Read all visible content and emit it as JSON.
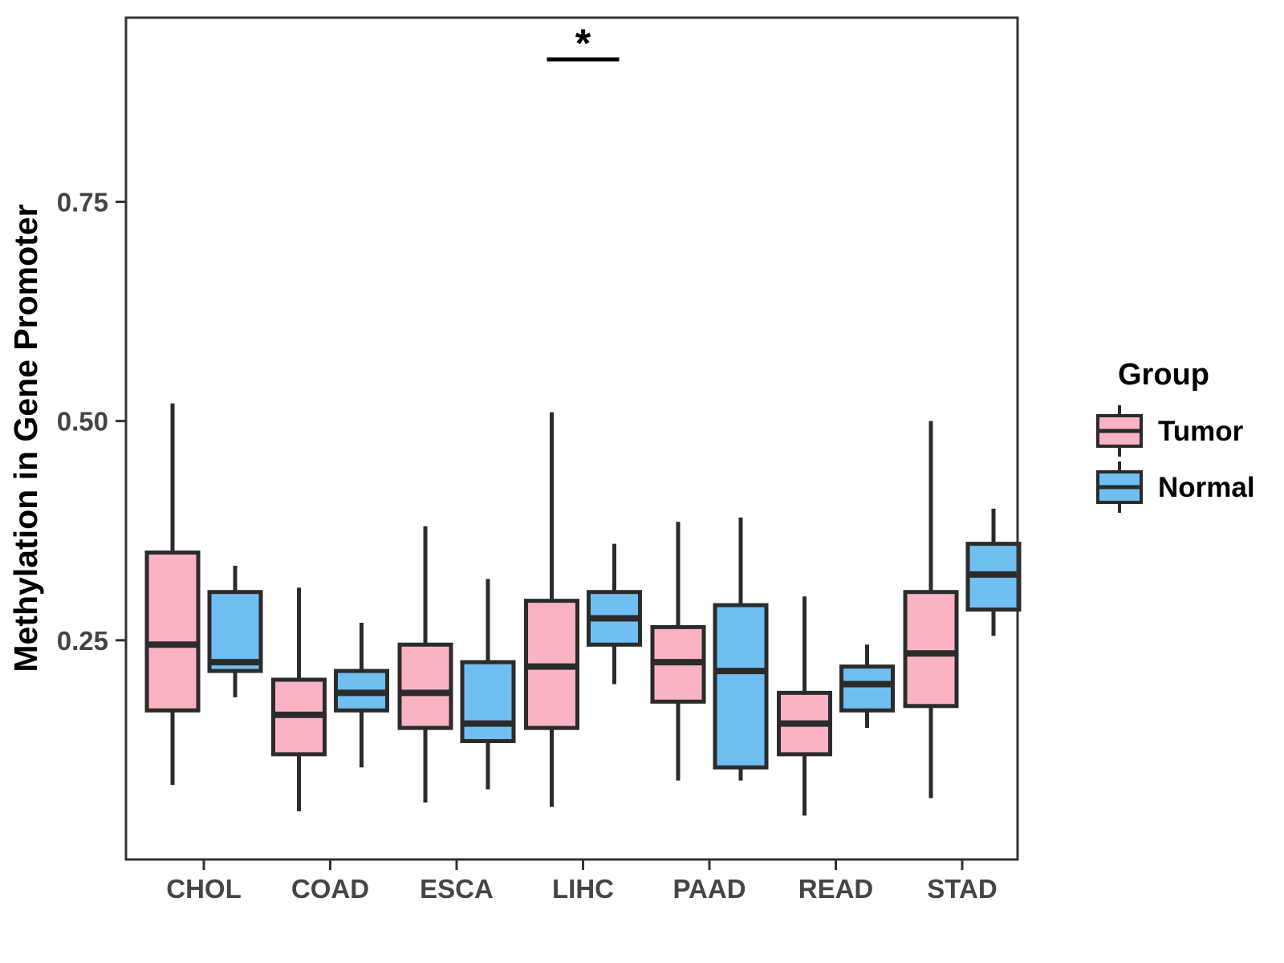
{
  "figure": {
    "y_axis_title": "Methylation in Gene Promoter",
    "significance": {
      "symbol": "*",
      "over_category": "LIHC"
    },
    "legend": {
      "title": "Group",
      "entries": [
        {
          "label": "Tumor",
          "color": "#F9B3C3"
        },
        {
          "label": "Normal",
          "color": "#70BFF2"
        }
      ]
    }
  },
  "chart_data": {
    "type": "boxplot",
    "title": "",
    "xlabel": "",
    "ylabel": "Methylation in Gene Promoter",
    "categories": [
      "CHOL",
      "COAD",
      "ESCA",
      "LIHC",
      "PAAD",
      "READ",
      "STAD"
    ],
    "groups": [
      "Tumor",
      "Normal"
    ],
    "ylim": [
      0,
      0.96
    ],
    "yticks": [
      0.25,
      0.5,
      0.75
    ],
    "ytick_labels": [
      "0.25",
      "0.50",
      "0.75"
    ],
    "grid": "off",
    "legend_position": "right",
    "box_stat_order": [
      "whisker_low",
      "q1",
      "median",
      "q3",
      "whisker_high"
    ],
    "series": [
      {
        "name": "Tumor",
        "fill_color": "#F9B3C3",
        "stroke_color": "#2B2B2B",
        "boxes": [
          {
            "category": "CHOL",
            "whisker_low": 0.085,
            "q1": 0.17,
            "median": 0.245,
            "q3": 0.35,
            "whisker_high": 0.52
          },
          {
            "category": "COAD",
            "whisker_low": 0.055,
            "q1": 0.12,
            "median": 0.165,
            "q3": 0.205,
            "whisker_high": 0.31
          },
          {
            "category": "ESCA",
            "whisker_low": 0.065,
            "q1": 0.15,
            "median": 0.19,
            "q3": 0.245,
            "whisker_high": 0.38
          },
          {
            "category": "LIHC",
            "whisker_low": 0.06,
            "q1": 0.15,
            "median": 0.22,
            "q3": 0.295,
            "whisker_high": 0.51
          },
          {
            "category": "PAAD",
            "whisker_low": 0.09,
            "q1": 0.18,
            "median": 0.225,
            "q3": 0.265,
            "whisker_high": 0.385
          },
          {
            "category": "READ",
            "whisker_low": 0.05,
            "q1": 0.12,
            "median": 0.155,
            "q3": 0.19,
            "whisker_high": 0.3
          },
          {
            "category": "STAD",
            "whisker_low": 0.07,
            "q1": 0.175,
            "median": 0.235,
            "q3": 0.305,
            "whisker_high": 0.5
          }
        ]
      },
      {
        "name": "Normal",
        "fill_color": "#70BFF2",
        "stroke_color": "#2B2B2B",
        "boxes": [
          {
            "category": "CHOL",
            "whisker_low": 0.185,
            "q1": 0.215,
            "median": 0.225,
            "q3": 0.305,
            "whisker_high": 0.335
          },
          {
            "category": "COAD",
            "whisker_low": 0.105,
            "q1": 0.17,
            "median": 0.19,
            "q3": 0.215,
            "whisker_high": 0.27
          },
          {
            "category": "ESCA",
            "whisker_low": 0.08,
            "q1": 0.135,
            "median": 0.155,
            "q3": 0.225,
            "whisker_high": 0.32
          },
          {
            "category": "LIHC",
            "whisker_low": 0.2,
            "q1": 0.245,
            "median": 0.275,
            "q3": 0.305,
            "whisker_high": 0.36
          },
          {
            "category": "PAAD",
            "whisker_low": 0.09,
            "q1": 0.105,
            "median": 0.215,
            "q3": 0.29,
            "whisker_high": 0.39
          },
          {
            "category": "READ",
            "whisker_low": 0.15,
            "q1": 0.17,
            "median": 0.2,
            "q3": 0.22,
            "whisker_high": 0.245
          },
          {
            "category": "STAD",
            "whisker_low": 0.255,
            "q1": 0.285,
            "median": 0.325,
            "q3": 0.36,
            "whisker_high": 0.4
          }
        ]
      }
    ],
    "annotation": {
      "text": "*",
      "category": "LIHC",
      "style": "bracket"
    }
  }
}
